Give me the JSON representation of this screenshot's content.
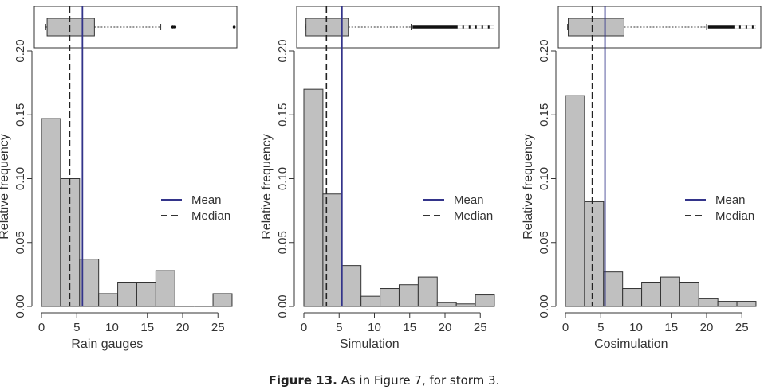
{
  "caption": {
    "label": "Figure 13.",
    "text": " As in Figure 7, for storm 3."
  },
  "chart_data": [
    {
      "type": "bar",
      "xlabel": "Rain gauges",
      "ylabel": "Relative frequency",
      "bin_edges": [
        0,
        2.7,
        5.4,
        8.1,
        10.8,
        13.5,
        16.2,
        18.9,
        21.6,
        24.3,
        27.0
      ],
      "values": [
        0.147,
        0.1,
        0.037,
        0.01,
        0.019,
        0.019,
        0.028,
        0.0,
        0.0,
        0.01
      ],
      "xlim": [
        0,
        27
      ],
      "ylim": [
        0,
        0.2
      ],
      "xticks": [
        0,
        5,
        10,
        15,
        20,
        25
      ],
      "yticks": [
        "0.00",
        "0.05",
        "0.10",
        "0.15",
        "0.20"
      ],
      "mean": 5.8,
      "median": 4.0,
      "legend": {
        "position": "right",
        "items": [
          {
            "label": "Mean",
            "style": "solid",
            "color": "#33348a"
          },
          {
            "label": "Median",
            "style": "dashed",
            "color": "#333333"
          }
        ]
      },
      "boxplot": {
        "whisker_low": 0.6,
        "q1": 0.8,
        "median": 4.0,
        "q3": 7.5,
        "whisker_high": 16.9,
        "outliers": [
          18.6,
          18.9,
          27.3
        ]
      }
    },
    {
      "type": "bar",
      "xlabel": "Simulation",
      "ylabel": "Relative frequency",
      "bin_edges": [
        0,
        2.7,
        5.4,
        8.1,
        10.8,
        13.5,
        16.2,
        18.9,
        21.6,
        24.3,
        27.0
      ],
      "values": [
        0.17,
        0.088,
        0.032,
        0.008,
        0.014,
        0.017,
        0.023,
        0.003,
        0.002,
        0.009
      ],
      "xlim": [
        0,
        27
      ],
      "ylim": [
        0,
        0.2
      ],
      "xticks": [
        0,
        5,
        10,
        15,
        20,
        25
      ],
      "yticks": [
        "0.00",
        "0.05",
        "0.10",
        "0.15",
        "0.20"
      ],
      "mean": 5.4,
      "median": 3.2,
      "legend": {
        "position": "right",
        "items": [
          {
            "label": "Mean",
            "style": "solid",
            "color": "#33348a"
          },
          {
            "label": "Median",
            "style": "dashed",
            "color": "#333333"
          }
        ]
      },
      "boxplot": {
        "whisker_low": 0.2,
        "q1": 0.3,
        "median": 3.2,
        "q3": 6.3,
        "whisker_high": 15.2,
        "outliers_range": [
          15.4,
          27.0
        ]
      }
    },
    {
      "type": "bar",
      "xlabel": "Cosimulation",
      "ylabel": "Relative frequency",
      "bin_edges": [
        0,
        2.7,
        5.4,
        8.1,
        10.8,
        13.5,
        16.2,
        18.9,
        21.6,
        24.3,
        27.0
      ],
      "values": [
        0.165,
        0.082,
        0.027,
        0.014,
        0.019,
        0.023,
        0.019,
        0.006,
        0.004,
        0.004
      ],
      "xlim": [
        0,
        27
      ],
      "ylim": [
        0,
        0.2
      ],
      "xticks": [
        0,
        5,
        10,
        15,
        20,
        25
      ],
      "yticks": [
        "0.00",
        "0.05",
        "0.10",
        "0.15",
        "0.20"
      ],
      "mean": 5.6,
      "median": 3.8,
      "legend": {
        "position": "right",
        "items": [
          {
            "label": "Mean",
            "style": "solid",
            "color": "#33348a"
          },
          {
            "label": "Median",
            "style": "dashed",
            "color": "#333333"
          }
        ]
      },
      "boxplot": {
        "whisker_low": 0.3,
        "q1": 0.4,
        "median": 3.8,
        "q3": 8.3,
        "whisker_high": 20.0,
        "outliers_range": [
          20.2,
          27.0
        ]
      }
    }
  ]
}
